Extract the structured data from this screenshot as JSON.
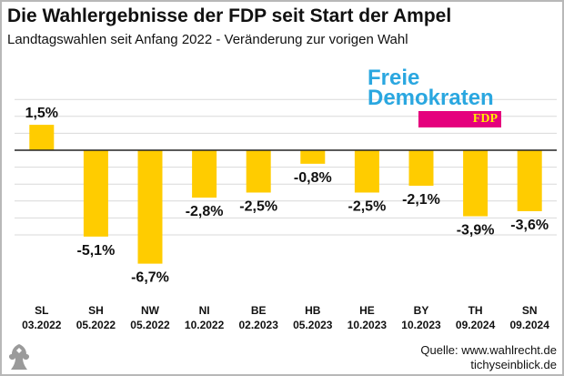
{
  "title": "Die Wahlergebnisse der FDP seit Start der Ampel",
  "subtitle": "Landtagswahlen seit Anfang 2022 - Veränderung zur vorigen Wahl",
  "logo": {
    "line1": "Freie",
    "line2": "Demokraten",
    "badge": "FDP"
  },
  "source": {
    "line1": "Quelle: www.wahlrecht.de",
    "line2": "tichyseinblick.de"
  },
  "colors": {
    "bar": "#ffcc00",
    "grid": "#d9d9d9",
    "logo_blue": "#2aa7e0",
    "logo_magenta": "#e5007d",
    "logo_yellow": "#ffed00"
  },
  "chart_data": {
    "type": "bar",
    "title": "Die Wahlergebnisse der FDP seit Start der Ampel",
    "subtitle": "Landtagswahlen seit Anfang 2022 - Veränderung zur vorigen Wahl",
    "categories": [
      "SL",
      "SH",
      "NW",
      "NI",
      "BE",
      "HB",
      "HE",
      "BY",
      "TH",
      "SN"
    ],
    "dates": [
      "03.2022",
      "05.2022",
      "05.2022",
      "10.2022",
      "02.2023",
      "05.2023",
      "10.2023",
      "10.2023",
      "09.2024",
      "09.2024"
    ],
    "values": [
      1.5,
      -5.1,
      -6.7,
      -2.8,
      -2.5,
      -0.8,
      -2.5,
      -2.1,
      -3.9,
      -3.6
    ],
    "labels": [
      "1,5%",
      "-5,1%",
      "-6,7%",
      "-2,8%",
      "-2,5%",
      "-0,8%",
      "-2,5%",
      "-2,1%",
      "-3,9%",
      "-3,6%"
    ],
    "ylim": [
      -7,
      4
    ],
    "grid": true,
    "legend": "none"
  }
}
